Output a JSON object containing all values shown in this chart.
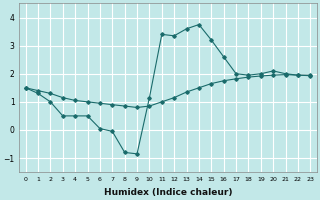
{
  "xlabel": "Humidex (Indice chaleur)",
  "bg_color": "#c2e8e8",
  "grid_color": "#ffffff",
  "line_color": "#1a6b6b",
  "xlim": [
    -0.5,
    23.5
  ],
  "ylim": [
    -1.5,
    4.5
  ],
  "yticks": [
    -1,
    0,
    1,
    2,
    3,
    4
  ],
  "xticks": [
    0,
    1,
    2,
    3,
    4,
    5,
    6,
    7,
    8,
    9,
    10,
    11,
    12,
    13,
    14,
    15,
    16,
    17,
    18,
    19,
    20,
    21,
    22,
    23
  ],
  "line1_x": [
    0,
    1,
    2,
    3,
    4,
    5,
    6,
    7,
    8,
    9,
    10,
    11,
    12,
    13,
    14,
    15,
    16,
    17,
    18,
    19,
    20,
    21,
    22,
    23
  ],
  "line1_y": [
    1.5,
    1.3,
    1.0,
    0.5,
    0.5,
    0.5,
    0.05,
    -0.05,
    -0.8,
    -0.85,
    1.15,
    3.4,
    3.35,
    3.6,
    3.75,
    3.2,
    2.6,
    2.0,
    1.95,
    2.0,
    2.1,
    2.0,
    1.95,
    1.95
  ],
  "line2_x": [
    0,
    1,
    2,
    3,
    4,
    5,
    6,
    7,
    8,
    9,
    10,
    11,
    12,
    13,
    14,
    15,
    16,
    17,
    18,
    19,
    20,
    21,
    22,
    23
  ],
  "line2_y": [
    1.5,
    1.4,
    1.3,
    1.15,
    1.05,
    1.0,
    0.95,
    0.9,
    0.85,
    0.8,
    0.85,
    1.0,
    1.15,
    1.35,
    1.5,
    1.65,
    1.75,
    1.82,
    1.88,
    1.92,
    1.95,
    1.97,
    1.95,
    1.93
  ]
}
